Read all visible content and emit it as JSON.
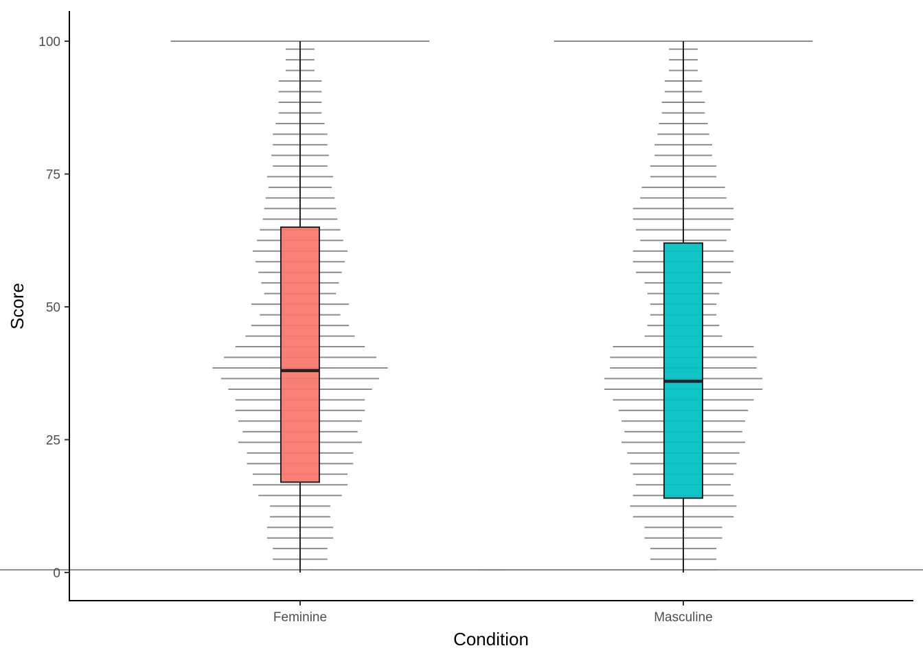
{
  "chart_data": {
    "type": "boxplot",
    "xlabel": "Condition",
    "ylabel": "Score",
    "ylim": [
      -5,
      105
    ],
    "yticks": [
      0,
      25,
      50,
      75,
      100
    ],
    "categories": [
      "Feminine",
      "Masculine"
    ],
    "grid": false,
    "legend": "none",
    "boxes": [
      {
        "category": "Feminine",
        "min": 0,
        "q1": 17,
        "median": 38,
        "q3": 65,
        "max": 100,
        "fill": "#F8766D"
      },
      {
        "category": "Masculine",
        "min": 0,
        "q1": 14,
        "median": 36,
        "q3": 62,
        "max": 100,
        "fill": "#00BFC4"
      }
    ],
    "distribution_lines": [
      {
        "category": "Feminine",
        "color": "#8c8c8c",
        "values": [
          0.5,
          2.5,
          4.5,
          6.5,
          8.5,
          10.5,
          12.5,
          14.5,
          16.5,
          18.5,
          20.5,
          22.5,
          24.5,
          26.5,
          28.5,
          30.5,
          32.5,
          34.5,
          36.5,
          38.5,
          40.5,
          42.5,
          44.5,
          46.5,
          48.5,
          50.5,
          52.5,
          54.5,
          56.5,
          58.5,
          60.5,
          62.5,
          64.5,
          66.5,
          68.5,
          70.5,
          72.5,
          74.5,
          76.5,
          78.5,
          80.5,
          82.5,
          84.5,
          86.5,
          88.5,
          90.5,
          92.5,
          94.5,
          96.5,
          98.5,
          100
        ],
        "density": [
          2.9,
          0.19,
          0.19,
          0.23,
          0.23,
          0.21,
          0.21,
          0.29,
          0.33,
          0.33,
          0.37,
          0.37,
          0.43,
          0.4,
          0.43,
          0.45,
          0.45,
          0.5,
          0.55,
          0.61,
          0.53,
          0.45,
          0.38,
          0.34,
          0.28,
          0.34,
          0.25,
          0.27,
          0.29,
          0.31,
          0.33,
          0.3,
          0.28,
          0.26,
          0.25,
          0.24,
          0.22,
          0.23,
          0.19,
          0.2,
          0.19,
          0.19,
          0.17,
          0.15,
          0.15,
          0.15,
          0.15,
          0.1,
          0.1,
          0.1,
          0.9
        ]
      },
      {
        "category": "Masculine",
        "color": "#8c8c8c",
        "values": [
          0.5,
          2.5,
          4.5,
          6.5,
          8.5,
          10.5,
          12.5,
          14.5,
          16.5,
          18.5,
          20.5,
          22.5,
          24.5,
          26.5,
          28.5,
          30.5,
          32.5,
          34.5,
          36.5,
          38.5,
          40.5,
          42.5,
          44.5,
          46.5,
          48.5,
          50.5,
          52.5,
          54.5,
          56.5,
          58.5,
          60.5,
          62.5,
          64.5,
          66.5,
          68.5,
          70.5,
          72.5,
          74.5,
          76.5,
          78.5,
          80.5,
          82.5,
          84.5,
          86.5,
          88.5,
          90.5,
          92.5,
          94.5,
          96.5,
          98.5,
          100
        ],
        "density": [
          2.6,
          0.23,
          0.23,
          0.27,
          0.27,
          0.35,
          0.37,
          0.35,
          0.33,
          0.35,
          0.37,
          0.39,
          0.43,
          0.41,
          0.43,
          0.45,
          0.49,
          0.55,
          0.55,
          0.51,
          0.51,
          0.49,
          0.27,
          0.25,
          0.23,
          0.23,
          0.25,
          0.27,
          0.33,
          0.35,
          0.35,
          0.3,
          0.33,
          0.35,
          0.35,
          0.3,
          0.29,
          0.23,
          0.23,
          0.2,
          0.2,
          0.18,
          0.17,
          0.15,
          0.15,
          0.13,
          0.13,
          0.1,
          0.1,
          0.1,
          0.9
        ]
      }
    ],
    "extra_lines": [
      {
        "position": 1.5,
        "value": 0.5,
        "density": 0.09,
        "color": "#8c8c8c"
      }
    ]
  }
}
